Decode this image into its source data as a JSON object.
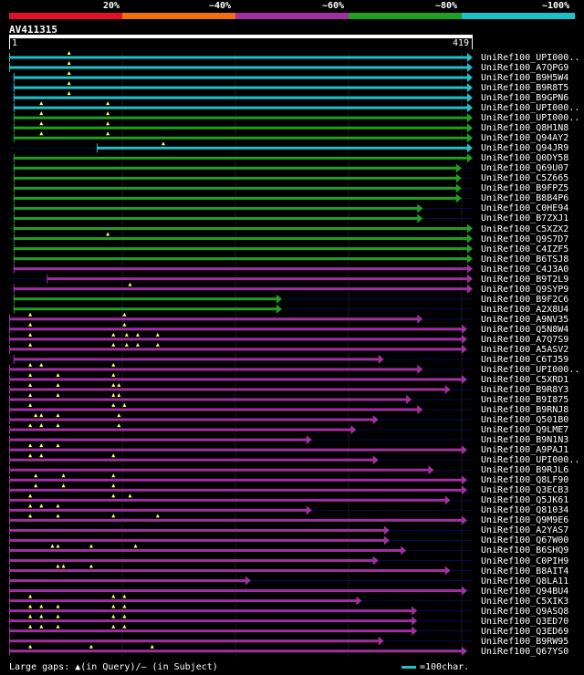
{
  "legend": {
    "labels": [
      "20%",
      "~40%",
      "~60%",
      "~80%",
      "~100%"
    ],
    "colors": [
      "#e0102a",
      "#f07010",
      "#a030a0",
      "#20a020",
      "#20c0c8"
    ]
  },
  "query": {
    "id": "AV411315",
    "start": "1",
    "end": "419",
    "length": 419
  },
  "footer": {
    "gaps_text": "Large gaps: ▲(in Query)/— (in Subject)",
    "scale_text": "=100char."
  },
  "colors": {
    "cyan": "#20c0c8",
    "green": "#20a020",
    "magenta": "#a030a0",
    "gap": "#ffff60",
    "bg": "#000000"
  },
  "chart_data": {
    "type": "alignment",
    "query_length": 419,
    "hits": [
      {
        "label": "UniRef100_UPI000..",
        "color": "cyan",
        "start": 1,
        "end": 419,
        "gaps": [
          55
        ]
      },
      {
        "label": "UniRef100_A7QPG9",
        "color": "cyan",
        "start": 1,
        "end": 419,
        "gaps": [
          55
        ]
      },
      {
        "label": "UniRef100_B9H5W4",
        "color": "cyan",
        "start": 5,
        "end": 419,
        "gaps": [
          55
        ]
      },
      {
        "label": "UniRef100_B9R8T5",
        "color": "cyan",
        "start": 5,
        "end": 419,
        "gaps": [
          55
        ]
      },
      {
        "label": "UniRef100_B9GPN6",
        "color": "cyan",
        "start": 5,
        "end": 419,
        "gaps": [
          55
        ]
      },
      {
        "label": "UniRef100_UPI000..",
        "color": "cyan",
        "start": 5,
        "end": 419,
        "gaps": [
          30,
          90
        ]
      },
      {
        "label": "UniRef100_UPI000..",
        "color": "green",
        "start": 5,
        "end": 419,
        "gaps": [
          30,
          90
        ]
      },
      {
        "label": "UniRef100_Q8H1N8",
        "color": "green",
        "start": 5,
        "end": 419,
        "gaps": [
          30,
          90
        ]
      },
      {
        "label": "UniRef100_Q94AY2",
        "color": "green",
        "start": 5,
        "end": 419,
        "gaps": [
          30,
          90
        ]
      },
      {
        "label": "UniRef100_Q94JR9",
        "color": "cyan",
        "start": 80,
        "end": 419,
        "gaps": [
          140
        ]
      },
      {
        "label": "UniRef100_Q0DY58",
        "color": "green",
        "start": 5,
        "end": 419,
        "gaps": []
      },
      {
        "label": "UniRef100_Q69U07",
        "color": "green",
        "start": 5,
        "end": 409,
        "gaps": []
      },
      {
        "label": "UniRef100_C5Z665",
        "color": "green",
        "start": 5,
        "end": 409,
        "gaps": []
      },
      {
        "label": "UniRef100_B9FPZ5",
        "color": "green",
        "start": 5,
        "end": 409,
        "gaps": []
      },
      {
        "label": "UniRef100_B8B4P6",
        "color": "green",
        "start": 5,
        "end": 409,
        "gaps": []
      },
      {
        "label": "UniRef100_C0HE94",
        "color": "green",
        "start": 5,
        "end": 374,
        "gaps": []
      },
      {
        "label": "UniRef100_B7ZXJ1",
        "color": "green",
        "start": 5,
        "end": 374,
        "gaps": []
      },
      {
        "label": "UniRef100_C5XZX2",
        "color": "green",
        "start": 5,
        "end": 419,
        "gaps": []
      },
      {
        "label": "UniRef100_Q9S7D7",
        "color": "green",
        "start": 5,
        "end": 419,
        "gaps": [
          90
        ]
      },
      {
        "label": "UniRef100_C4IZF5",
        "color": "green",
        "start": 5,
        "end": 419,
        "gaps": []
      },
      {
        "label": "UniRef100_B6TSJ8",
        "color": "green",
        "start": 5,
        "end": 419,
        "gaps": []
      },
      {
        "label": "UniRef100_C4J3A0",
        "color": "magenta",
        "start": 5,
        "end": 419,
        "gaps": []
      },
      {
        "label": "UniRef100_B9T2L9",
        "color": "magenta",
        "start": 35,
        "end": 419,
        "gaps": []
      },
      {
        "label": "UniRef100_Q9SYP9",
        "color": "magenta",
        "start": 5,
        "end": 419,
        "gaps": [
          110
        ]
      },
      {
        "label": "UniRef100_B9F2C6",
        "color": "green",
        "start": 5,
        "end": 247,
        "gaps": []
      },
      {
        "label": "UniRef100_A2X8U4",
        "color": "green",
        "start": 5,
        "end": 247,
        "gaps": []
      },
      {
        "label": "UniRef100_A9NV35",
        "color": "magenta",
        "start": 1,
        "end": 374,
        "gaps": [
          20,
          105
        ]
      },
      {
        "label": "UniRef100_Q5N8W4",
        "color": "magenta",
        "start": 1,
        "end": 414,
        "gaps": [
          20,
          105
        ]
      },
      {
        "label": "UniRef100_A7Q7S9",
        "color": "magenta",
        "start": 1,
        "end": 414,
        "gaps": [
          20,
          95,
          107,
          117,
          135
        ]
      },
      {
        "label": "UniRef100_A5ASV2",
        "color": "magenta",
        "start": 1,
        "end": 414,
        "gaps": [
          20,
          95,
          107,
          117,
          135
        ]
      },
      {
        "label": "UniRef100_C6TJ59",
        "color": "magenta",
        "start": 5,
        "end": 339,
        "gaps": []
      },
      {
        "label": "UniRef100_UPI000..",
        "color": "magenta",
        "start": 1,
        "end": 374,
        "gaps": [
          20,
          30,
          95
        ]
      },
      {
        "label": "UniRef100_C5XRD1",
        "color": "magenta",
        "start": 1,
        "end": 414,
        "gaps": [
          20,
          45,
          95
        ]
      },
      {
        "label": "UniRef100_B9R8Y3",
        "color": "magenta",
        "start": 1,
        "end": 399,
        "gaps": [
          20,
          45,
          95,
          100
        ]
      },
      {
        "label": "UniRef100_B9I875",
        "color": "magenta",
        "start": 1,
        "end": 364,
        "gaps": [
          20,
          45,
          95,
          100
        ]
      },
      {
        "label": "UniRef100_B9RNJ8",
        "color": "magenta",
        "start": 1,
        "end": 374,
        "gaps": [
          20,
          95,
          105
        ]
      },
      {
        "label": "UniRef100_Q501B0",
        "color": "magenta",
        "start": 1,
        "end": 334,
        "gaps": [
          25,
          30,
          45,
          100
        ]
      },
      {
        "label": "UniRef100_Q9LME7",
        "color": "magenta",
        "start": 1,
        "end": 314,
        "gaps": [
          20,
          30,
          45,
          100
        ]
      },
      {
        "label": "UniRef100_B9N1N3",
        "color": "magenta",
        "start": 1,
        "end": 274,
        "gaps": []
      },
      {
        "label": "UniRef100_A9PAJ1",
        "color": "magenta",
        "start": 1,
        "end": 414,
        "gaps": [
          20,
          30,
          45
        ]
      },
      {
        "label": "UniRef100_UPI000..",
        "color": "magenta",
        "start": 1,
        "end": 334,
        "gaps": [
          20,
          30,
          95
        ]
      },
      {
        "label": "UniRef100_B9RJL6",
        "color": "magenta",
        "start": 1,
        "end": 384,
        "gaps": []
      },
      {
        "label": "UniRef100_Q8LF90",
        "color": "magenta",
        "start": 1,
        "end": 414,
        "gaps": [
          25,
          50,
          95
        ]
      },
      {
        "label": "UniRef100_Q3ECB3",
        "color": "magenta",
        "start": 1,
        "end": 414,
        "gaps": [
          25,
          50,
          95
        ]
      },
      {
        "label": "UniRef100_Q5JK61",
        "color": "magenta",
        "start": 1,
        "end": 399,
        "gaps": [
          20,
          95,
          110
        ]
      },
      {
        "label": "UniRef100_Q81034",
        "color": "magenta",
        "start": 1,
        "end": 274,
        "gaps": [
          20,
          30,
          45
        ]
      },
      {
        "label": "UniRef100_Q9M9E6",
        "color": "magenta",
        "start": 1,
        "end": 414,
        "gaps": [
          20,
          45,
          95,
          135
        ]
      },
      {
        "label": "UniRef100_A2YAS7",
        "color": "magenta",
        "start": 1,
        "end": 344,
        "gaps": []
      },
      {
        "label": "UniRef100_Q67W00",
        "color": "magenta",
        "start": 1,
        "end": 344,
        "gaps": []
      },
      {
        "label": "UniRef100_B6SHQ9",
        "color": "magenta",
        "start": 1,
        "end": 359,
        "gaps": [
          40,
          45,
          75,
          115
        ]
      },
      {
        "label": "UniRef100_C0PIH9",
        "color": "magenta",
        "start": 1,
        "end": 334,
        "gaps": []
      },
      {
        "label": "UniRef100_B8AIT4",
        "color": "magenta",
        "start": 1,
        "end": 399,
        "gaps": [
          45,
          50,
          75
        ]
      },
      {
        "label": "UniRef100_Q8LA11",
        "color": "magenta",
        "start": 1,
        "end": 219,
        "gaps": []
      },
      {
        "label": "UniRef100_Q94BU4",
        "color": "magenta",
        "start": 1,
        "end": 414,
        "gaps": []
      },
      {
        "label": "UniRef100_C5XIK3",
        "color": "magenta",
        "start": 1,
        "end": 319,
        "gaps": [
          20,
          95,
          105
        ]
      },
      {
        "label": "UniRef100_Q9ASQ8",
        "color": "magenta",
        "start": 1,
        "end": 369,
        "gaps": [
          20,
          30,
          45,
          95,
          105
        ]
      },
      {
        "label": "UniRef100_Q3ED70",
        "color": "magenta",
        "start": 1,
        "end": 369,
        "gaps": [
          20,
          30,
          45,
          95,
          105
        ]
      },
      {
        "label": "UniRef100_Q3ED69",
        "color": "magenta",
        "start": 1,
        "end": 369,
        "gaps": [
          20,
          30,
          45,
          95,
          105
        ]
      },
      {
        "label": "UniRef100_B9RW95",
        "color": "magenta",
        "start": 1,
        "end": 339,
        "gaps": []
      },
      {
        "label": "UniRef100_Q67YS0",
        "color": "magenta",
        "start": 1,
        "end": 414,
        "gaps": [
          20,
          75,
          130
        ]
      }
    ]
  }
}
